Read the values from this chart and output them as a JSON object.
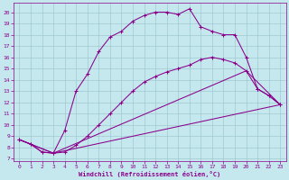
{
  "xlabel": "Windchill (Refroidissement éolien,°C)",
  "background_color": "#c5e8ee",
  "line_color": "#8b008b",
  "grid_color": "#a0c8d0",
  "xlim": [
    -0.5,
    23.5
  ],
  "ylim": [
    6.8,
    20.8
  ],
  "xticks": [
    0,
    1,
    2,
    3,
    4,
    5,
    6,
    7,
    8,
    9,
    10,
    11,
    12,
    13,
    14,
    15,
    16,
    17,
    18,
    19,
    20,
    21,
    22,
    23
  ],
  "yticks": [
    7,
    8,
    9,
    10,
    11,
    12,
    13,
    14,
    15,
    16,
    17,
    18,
    19,
    20
  ],
  "curve_main_x": [
    0,
    1,
    2,
    3,
    4,
    5,
    6,
    7,
    8,
    9,
    10,
    11,
    12,
    13,
    14,
    15,
    16,
    17,
    18,
    19,
    20,
    21,
    22,
    23
  ],
  "curve_main_y": [
    8.7,
    8.3,
    7.6,
    7.5,
    9.5,
    13.0,
    14.5,
    16.5,
    17.8,
    18.3,
    19.2,
    19.7,
    20.0,
    20.0,
    19.8,
    20.3,
    18.7,
    18.3,
    18.0,
    18.0,
    16.0,
    13.2,
    12.6,
    11.8
  ],
  "curve_lower_x": [
    0,
    1,
    2,
    3,
    4,
    5,
    6,
    7,
    8,
    9,
    10,
    11,
    12,
    13,
    14,
    15,
    16,
    17,
    18,
    19,
    20,
    21,
    22,
    23
  ],
  "curve_lower_y": [
    8.7,
    8.3,
    7.6,
    7.5,
    7.6,
    8.2,
    9.0,
    10.0,
    11.0,
    12.0,
    13.0,
    13.8,
    14.3,
    14.7,
    15.0,
    15.3,
    15.8,
    16.0,
    15.8,
    15.5,
    14.8,
    13.2,
    12.6,
    11.8
  ],
  "curve_line1_x": [
    0,
    3,
    23
  ],
  "curve_line1_y": [
    8.7,
    7.5,
    11.8
  ],
  "curve_line2_x": [
    0,
    3,
    20,
    23
  ],
  "curve_line2_y": [
    8.7,
    7.5,
    14.8,
    11.8
  ]
}
